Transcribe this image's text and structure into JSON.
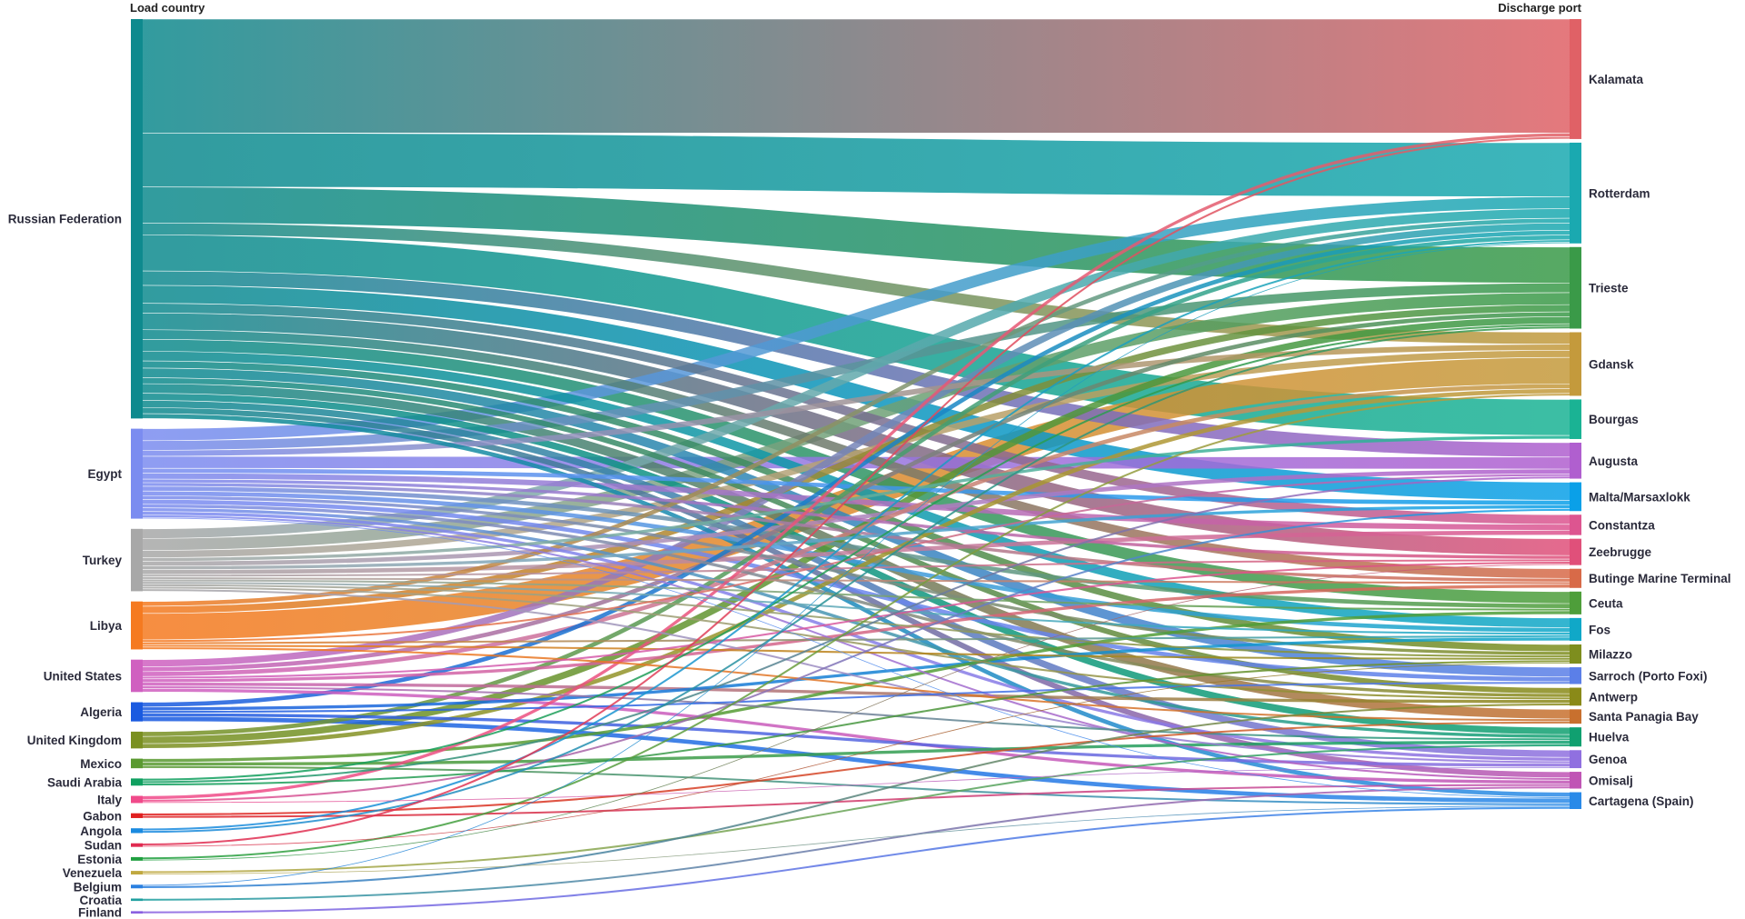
{
  "chart_data": {
    "type": "sankey",
    "left_header": "Load country",
    "right_header": "Discharge port",
    "sources": [
      {
        "name": "Russian Federation",
        "color": "#0e8a8e"
      },
      {
        "name": "Egypt",
        "color": "#7b8cf0"
      },
      {
        "name": "Turkey",
        "color": "#a8a8a8"
      },
      {
        "name": "Libya",
        "color": "#f57a20"
      },
      {
        "name": "United States",
        "color": "#d060c0"
      },
      {
        "name": "Algeria",
        "color": "#1a5ae0"
      },
      {
        "name": "United Kingdom",
        "color": "#7a9020"
      },
      {
        "name": "Mexico",
        "color": "#5a9a30"
      },
      {
        "name": "Saudi Arabia",
        "color": "#10a060"
      },
      {
        "name": "Italy",
        "color": "#f04a8a"
      },
      {
        "name": "Gabon",
        "color": "#e02020"
      },
      {
        "name": "Angola",
        "color": "#1a8ae0"
      },
      {
        "name": "Sudan",
        "color": "#e02a50"
      },
      {
        "name": "Estonia",
        "color": "#20a040"
      },
      {
        "name": "Venezuela",
        "color": "#c0a840"
      },
      {
        "name": "Belgium",
        "color": "#2a80e0"
      },
      {
        "name": "Croatia",
        "color": "#20a0a0"
      },
      {
        "name": "Finland",
        "color": "#8a60e0"
      }
    ],
    "targets": [
      {
        "name": "Kalamata",
        "color": "#e06166"
      },
      {
        "name": "Rotterdam",
        "color": "#1aa9b0"
      },
      {
        "name": "Trieste",
        "color": "#3a9a48"
      },
      {
        "name": "Gdansk",
        "color": "#c49a3c"
      },
      {
        "name": "Bourgas",
        "color": "#1ab394"
      },
      {
        "name": "Augusta",
        "color": "#b05fcf"
      },
      {
        "name": "Malta/Marsaxlokk",
        "color": "#0aa0e8"
      },
      {
        "name": "Constantza",
        "color": "#dd5590"
      },
      {
        "name": "Zeebrugge",
        "color": "#e0507a"
      },
      {
        "name": "Butinge Marine Terminal",
        "color": "#d86a48"
      },
      {
        "name": "Ceuta",
        "color": "#4e9e3a"
      },
      {
        "name": "Fos",
        "color": "#10a8c8"
      },
      {
        "name": "Milazzo",
        "color": "#7e8e1e"
      },
      {
        "name": "Sarroch (Porto Foxi)",
        "color": "#5b7fe8"
      },
      {
        "name": "Antwerp",
        "color": "#8a8a18"
      },
      {
        "name": "Santa Panagia Bay",
        "color": "#c8702e"
      },
      {
        "name": "Huelva",
        "color": "#10a070"
      },
      {
        "name": "Genoa",
        "color": "#9070e0"
      },
      {
        "name": "Omisalj",
        "color": "#c055b5"
      },
      {
        "name": "Cartagena (Spain)",
        "color": "#2a8ae8"
      }
    ],
    "links": [
      [
        "Russian Federation",
        "Kalamata",
        95
      ],
      [
        "Russian Federation",
        "Rotterdam",
        45
      ],
      [
        "Russian Federation",
        "Trieste",
        30
      ],
      [
        "Russian Federation",
        "Gdansk",
        10
      ],
      [
        "Russian Federation",
        "Bourgas",
        30
      ],
      [
        "Russian Federation",
        "Augusta",
        12
      ],
      [
        "Russian Federation",
        "Malta/Marsaxlokk",
        15
      ],
      [
        "Russian Federation",
        "Constantza",
        8
      ],
      [
        "Russian Federation",
        "Zeebrugge",
        14
      ],
      [
        "Russian Federation",
        "Butinge Marine Terminal",
        8
      ],
      [
        "Russian Federation",
        "Ceuta",
        10
      ],
      [
        "Russian Federation",
        "Fos",
        8
      ],
      [
        "Russian Federation",
        "Milazzo",
        6
      ],
      [
        "Russian Federation",
        "Sarroch (Porto Foxi)",
        8
      ],
      [
        "Russian Federation",
        "Antwerp",
        5
      ],
      [
        "Russian Federation",
        "Santa Panagia Bay",
        8
      ],
      [
        "Russian Federation",
        "Huelva",
        6
      ],
      [
        "Russian Federation",
        "Genoa",
        6
      ],
      [
        "Russian Federation",
        "Omisalj",
        5
      ],
      [
        "Russian Federation",
        "Cartagena (Spain)",
        4
      ],
      [
        "Egypt",
        "Rotterdam",
        10
      ],
      [
        "Egypt",
        "Trieste",
        8
      ],
      [
        "Egypt",
        "Gdansk",
        5
      ],
      [
        "Egypt",
        "Augusta",
        10
      ],
      [
        "Egypt",
        "Malta/Marsaxlokk",
        4
      ],
      [
        "Egypt",
        "Constantza",
        5
      ],
      [
        "Egypt",
        "Zeebrugge",
        3
      ],
      [
        "Egypt",
        "Butinge Marine Terminal",
        3
      ],
      [
        "Egypt",
        "Ceuta",
        4
      ],
      [
        "Egypt",
        "Fos",
        4
      ],
      [
        "Egypt",
        "Milazzo",
        3
      ],
      [
        "Egypt",
        "Sarroch (Porto Foxi)",
        4
      ],
      [
        "Egypt",
        "Antwerp",
        3
      ],
      [
        "Egypt",
        "Huelva",
        3
      ],
      [
        "Egypt",
        "Genoa",
        3
      ],
      [
        "Egypt",
        "Omisalj",
        2
      ],
      [
        "Egypt",
        "Cartagena (Spain)",
        1
      ],
      [
        "Turkey",
        "Rotterdam",
        8
      ],
      [
        "Turkey",
        "Trieste",
        10
      ],
      [
        "Turkey",
        "Gdansk",
        6
      ],
      [
        "Turkey",
        "Bourgas",
        3
      ],
      [
        "Turkey",
        "Augusta",
        4
      ],
      [
        "Turkey",
        "Malta/Marsaxlokk",
        3
      ],
      [
        "Turkey",
        "Constantza",
        4
      ],
      [
        "Turkey",
        "Zeebrugge",
        2
      ],
      [
        "Turkey",
        "Butinge Marine Terminal",
        2
      ],
      [
        "Turkey",
        "Ceuta",
        2
      ],
      [
        "Turkey",
        "Fos",
        2
      ],
      [
        "Turkey",
        "Milazzo",
        2
      ],
      [
        "Turkey",
        "Antwerp",
        2
      ],
      [
        "Turkey",
        "Genoa",
        2
      ],
      [
        "Libya",
        "Gdansk",
        22
      ],
      [
        "Libya",
        "Trieste",
        6
      ],
      [
        "Libya",
        "Rotterdam",
        4
      ],
      [
        "Libya",
        "Augusta",
        2
      ],
      [
        "Libya",
        "Fos",
        2
      ],
      [
        "Libya",
        "Milazzo",
        2
      ],
      [
        "Libya",
        "Santa Panagia Bay",
        2
      ],
      [
        "United States",
        "Rotterdam",
        6
      ],
      [
        "United States",
        "Trieste",
        4
      ],
      [
        "United States",
        "Gdansk",
        4
      ],
      [
        "United States",
        "Zeebrugge",
        2
      ],
      [
        "United States",
        "Butinge Marine Terminal",
        3
      ],
      [
        "United States",
        "Antwerp",
        3
      ],
      [
        "United States",
        "Huelva",
        2
      ],
      [
        "United States",
        "Omisalj",
        3
      ],
      [
        "Algeria",
        "Rotterdam",
        4
      ],
      [
        "Algeria",
        "Fos",
        3
      ],
      [
        "Algeria",
        "Cartagena (Spain)",
        4
      ],
      [
        "Algeria",
        "Sarroch (Porto Foxi)",
        2
      ],
      [
        "Algeria",
        "Genoa",
        3
      ],
      [
        "United Kingdom",
        "Trieste",
        6
      ],
      [
        "United Kingdom",
        "Gdansk",
        4
      ],
      [
        "United Kingdom",
        "Rotterdam",
        4
      ],
      [
        "Mexico",
        "Ceuta",
        3
      ],
      [
        "Mexico",
        "Huelva",
        3
      ],
      [
        "Mexico",
        "Cartagena (Spain)",
        2
      ],
      [
        "Saudi Arabia",
        "Trieste",
        2
      ],
      [
        "Saudi Arabia",
        "Milazzo",
        2
      ],
      [
        "Saudi Arabia",
        "Augusta",
        2
      ],
      [
        "Italy",
        "Kalamata",
        3
      ],
      [
        "Italy",
        "Malta/Marsaxlokk",
        2
      ],
      [
        "Italy",
        "Genoa",
        1
      ],
      [
        "Gabon",
        "Santa Panagia Bay",
        2
      ],
      [
        "Gabon",
        "Omisalj",
        2
      ],
      [
        "Angola",
        "Rotterdam",
        2
      ],
      [
        "Angola",
        "Trieste",
        2
      ],
      [
        "Sudan",
        "Kalamata",
        2
      ],
      [
        "Sudan",
        "Milazzo",
        1
      ],
      [
        "Estonia",
        "Gdansk",
        2
      ],
      [
        "Estonia",
        "Zeebrugge",
        1
      ],
      [
        "Venezuela",
        "Huelva",
        2
      ],
      [
        "Venezuela",
        "Cartagena (Spain)",
        1
      ],
      [
        "Belgium",
        "Antwerp",
        2
      ],
      [
        "Belgium",
        "Rotterdam",
        1
      ],
      [
        "Croatia",
        "Omisalj",
        2
      ],
      [
        "Finland",
        "Cartagena (Spain)",
        2
      ]
    ]
  }
}
